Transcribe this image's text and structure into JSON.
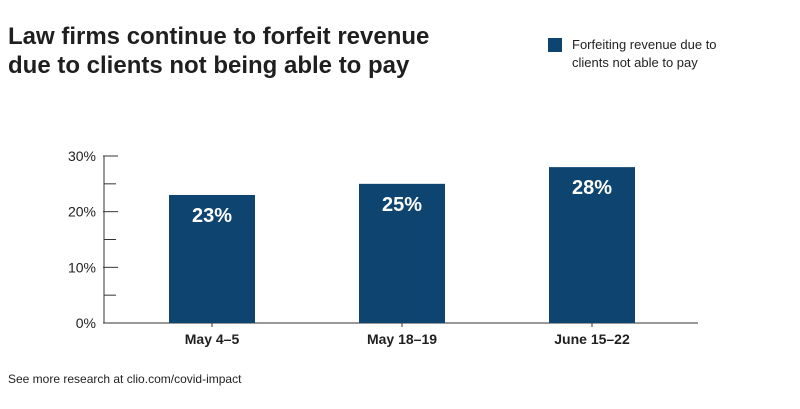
{
  "title": "Law firms continue to forfeit revenue due to clients not being able to pay",
  "footnote": "See more research at clio.com/covid-impact",
  "colors": {
    "bar": "#0e4470",
    "axis": "#333333",
    "text": "#1f1f1f",
    "bar_label": "#ffffff"
  },
  "chart_data": {
    "type": "bar",
    "categories": [
      "May 4–5",
      "May  18–19",
      "June 15–22"
    ],
    "series": [
      {
        "name": "Forfeiting revenue due to clients not able to pay",
        "values": [
          23,
          25,
          28
        ]
      }
    ],
    "data_labels": [
      "23%",
      "25%",
      "28%"
    ],
    "yticks": [
      "0%",
      "10%",
      "20%",
      "30%"
    ],
    "ylim": [
      0,
      30
    ],
    "grid": false,
    "legend_position": "top-right"
  }
}
